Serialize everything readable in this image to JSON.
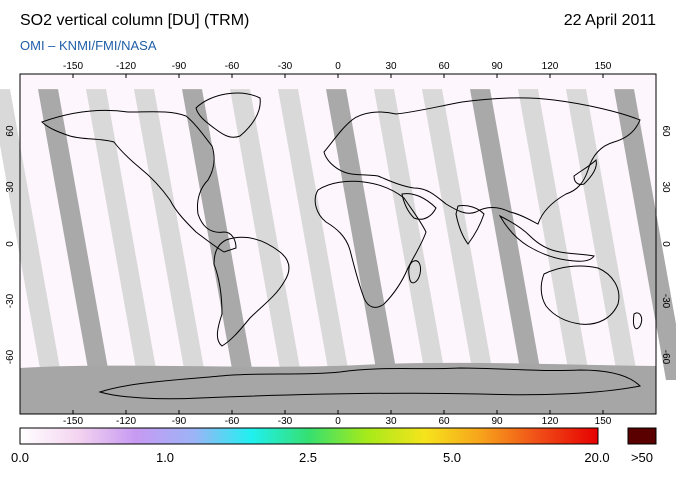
{
  "header": {
    "title": "SO2 vertical column [DU] (TRM)",
    "date": "22 April 2011",
    "credit": "OMI  –  KNMI/FMI/NASA"
  },
  "map": {
    "lon_ticks": [
      "-150",
      "-120",
      "-90",
      "-60",
      "-30",
      "0",
      "30",
      "60",
      "90",
      "120",
      "150"
    ],
    "lat_ticks": [
      "60",
      "30",
      "0",
      "-30",
      "-60"
    ],
    "colors": {
      "frame": "#000000",
      "orbit_dark": "#a9a9a9",
      "orbit_light": "#d9d9d9",
      "antarctic_gray": "#a6a6a6",
      "background": "#fdf6fc"
    }
  },
  "colorbar": {
    "labels": [
      "0.0",
      "1.0",
      "2.5",
      "5.0",
      "20.0",
      ">50"
    ],
    "colors": [
      "#ffffff",
      "#f4d4f0",
      "#c79af2",
      "#9db3f6",
      "#20f0f0",
      "#35e070",
      "#a6ea1a",
      "#f6e41c",
      "#f7a11b",
      "#f04b17",
      "#e60000"
    ],
    "overflow_color": "#5a0000"
  }
}
